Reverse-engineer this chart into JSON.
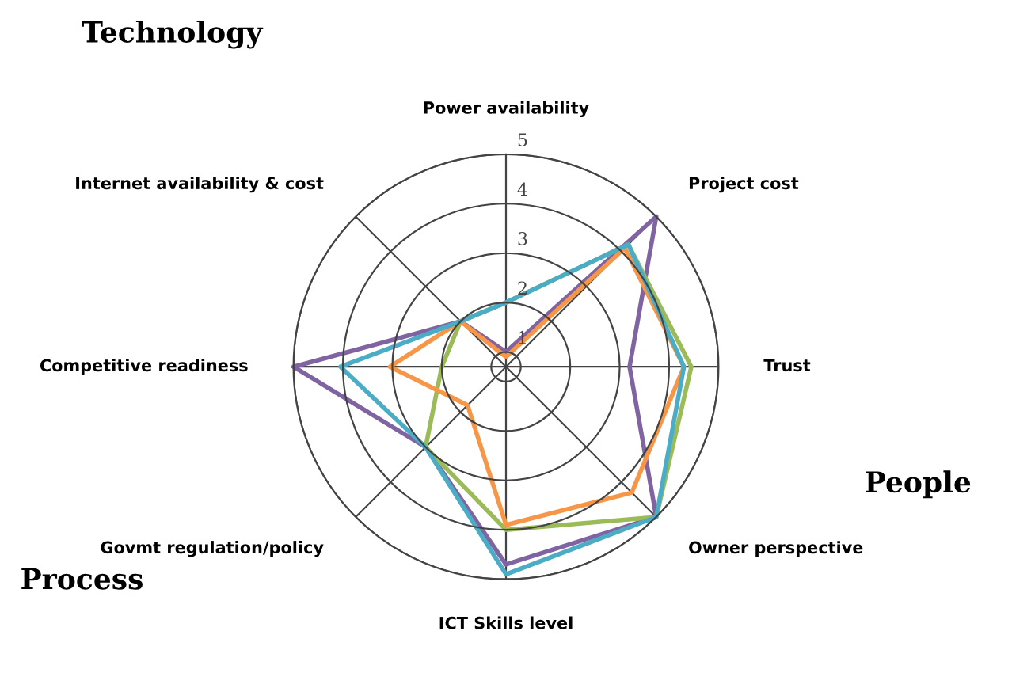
{
  "chart_data": {
    "type": "radar",
    "categories": [
      "Power availability",
      "Project cost",
      "Trust",
      "Owner perspective",
      "ICT Skills level",
      "Govmt regulation/policy",
      "Competitive readiness",
      "Internet availability & cost"
    ],
    "series": [
      {
        "color": "#8064a2",
        "values": [
          1.0,
          5.0,
          3.2,
          5.0,
          4.7,
          3.0,
          5.0,
          2.0
        ]
      },
      {
        "color": "#9bbb59",
        "values": [
          2.0,
          4.2,
          4.45,
          5.0,
          4.0,
          3.0,
          2.0,
          2.0
        ]
      },
      {
        "color": "#f79646",
        "values": [
          0.9,
          4.1,
          4.3,
          4.3,
          3.9,
          1.8,
          3.05,
          2.0
        ]
      },
      {
        "color": "#4bacc6",
        "values": [
          2.0,
          4.2,
          4.3,
          5.0,
          4.9,
          3.0,
          4.05,
          2.0
        ]
      }
    ],
    "ylim": [
      0.7,
      5
    ],
    "yticks": [
      1,
      2,
      3,
      4,
      5
    ],
    "grid": true,
    "marker": "none",
    "line_style": "solid",
    "annotations": [
      "Technology",
      "People",
      "Process"
    ]
  }
}
